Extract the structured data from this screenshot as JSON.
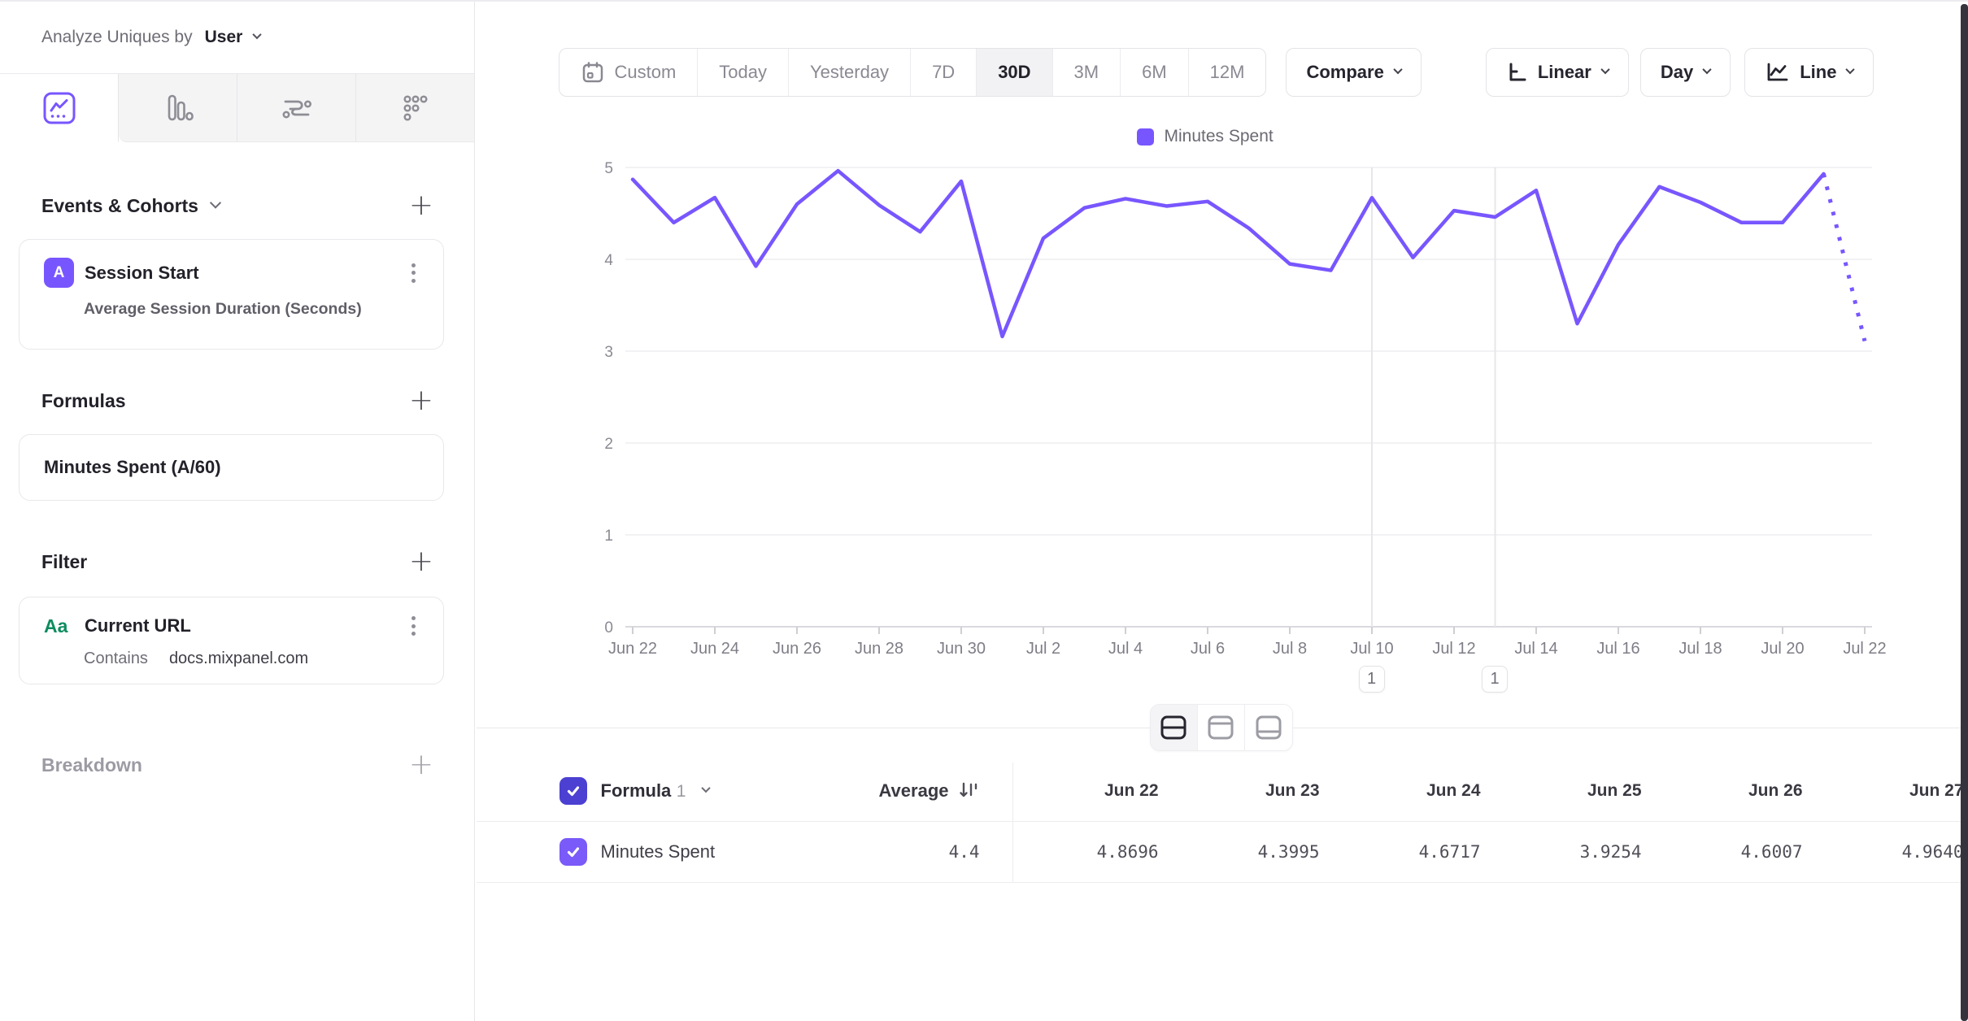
{
  "ui": {
    "plus": "+"
  },
  "sidebar": {
    "analyze_label": "Analyze Uniques by",
    "analyze_value": "User",
    "tabs": [
      "insights-line-chart",
      "bar-chart",
      "flows",
      "retention-grid"
    ],
    "active_tab": "insights-line-chart",
    "sections": {
      "events": {
        "title": "Events & Cohorts"
      },
      "formulas": {
        "title": "Formulas"
      },
      "filter": {
        "title": "Filter"
      },
      "breakdown": {
        "title": "Breakdown"
      }
    },
    "event_card": {
      "badge": "A",
      "title": "Session Start",
      "metric": "Average Session Duration (Seconds)"
    },
    "formula_card": {
      "title": "Minutes Spent (A/60)"
    },
    "filter_card": {
      "badge": "Aa",
      "title": "Current URL",
      "operator": "Contains",
      "value": "docs.mixpanel.com"
    }
  },
  "toolbar": {
    "ranges": [
      "Custom",
      "Today",
      "Yesterday",
      "7D",
      "30D",
      "3M",
      "6M",
      "12M"
    ],
    "active_range": "30D",
    "compare_label": "Compare",
    "scale_label": "Linear",
    "granularity_label": "Day",
    "chart_type_label": "Line"
  },
  "legend": {
    "label": "Minutes Spent",
    "color": "#7856ff"
  },
  "chart_data": {
    "type": "line",
    "series_name": "Minutes Spent",
    "line_color": "#7856ff",
    "x": [
      "Jun 22",
      "Jun 23",
      "Jun 24",
      "Jun 25",
      "Jun 26",
      "Jun 27",
      "Jun 28",
      "Jun 29",
      "Jun 30",
      "Jul 1",
      "Jul 2",
      "Jul 3",
      "Jul 4",
      "Jul 5",
      "Jul 6",
      "Jul 7",
      "Jul 8",
      "Jul 9",
      "Jul 10",
      "Jul 11",
      "Jul 12",
      "Jul 13",
      "Jul 14",
      "Jul 15",
      "Jul 16",
      "Jul 17",
      "Jul 18",
      "Jul 19",
      "Jul 20",
      "Jul 21",
      "Jul 22"
    ],
    "values": [
      4.8696,
      4.3995,
      4.6717,
      3.9254,
      4.6007,
      4.964,
      4.59,
      4.3,
      4.85,
      3.16,
      4.23,
      4.56,
      4.66,
      4.58,
      4.63,
      4.34,
      3.95,
      3.88,
      4.67,
      4.02,
      4.53,
      4.46,
      4.75,
      3.3,
      4.16,
      4.79,
      4.62,
      4.4,
      4.4,
      4.93,
      3.11
    ],
    "incomplete_last_point": true,
    "ylim": [
      0,
      5
    ],
    "yticks": [
      0,
      1,
      2,
      3,
      4,
      5
    ],
    "x_label_every": 2,
    "grid": true,
    "legend_position": "top-center"
  },
  "annotations": [
    {
      "label": "1",
      "x": "Jul 10"
    },
    {
      "label": "1",
      "x": "Jul 13"
    }
  ],
  "view_toggle": {
    "modes": [
      "split-view",
      "chart-only-view",
      "table-only-view"
    ],
    "active": "split-view"
  },
  "table": {
    "header": {
      "name": "Formula",
      "name_index": "1",
      "average_label": "Average"
    },
    "columns": [
      "Jun 22",
      "Jun 23",
      "Jun 24",
      "Jun 25",
      "Jun 26",
      "Jun 27"
    ],
    "rows": [
      {
        "name": "Minutes Spent",
        "checked": true,
        "average": "4.4",
        "values": [
          "4.8696",
          "4.3995",
          "4.6717",
          "3.9254",
          "4.6007",
          "4.9640"
        ]
      }
    ]
  },
  "colors": {
    "accent": "#7856ff",
    "checkbox_header": "#4b40d2",
    "checkbox_row": "#7a5af8",
    "green_badge": "#0e8c5f"
  }
}
